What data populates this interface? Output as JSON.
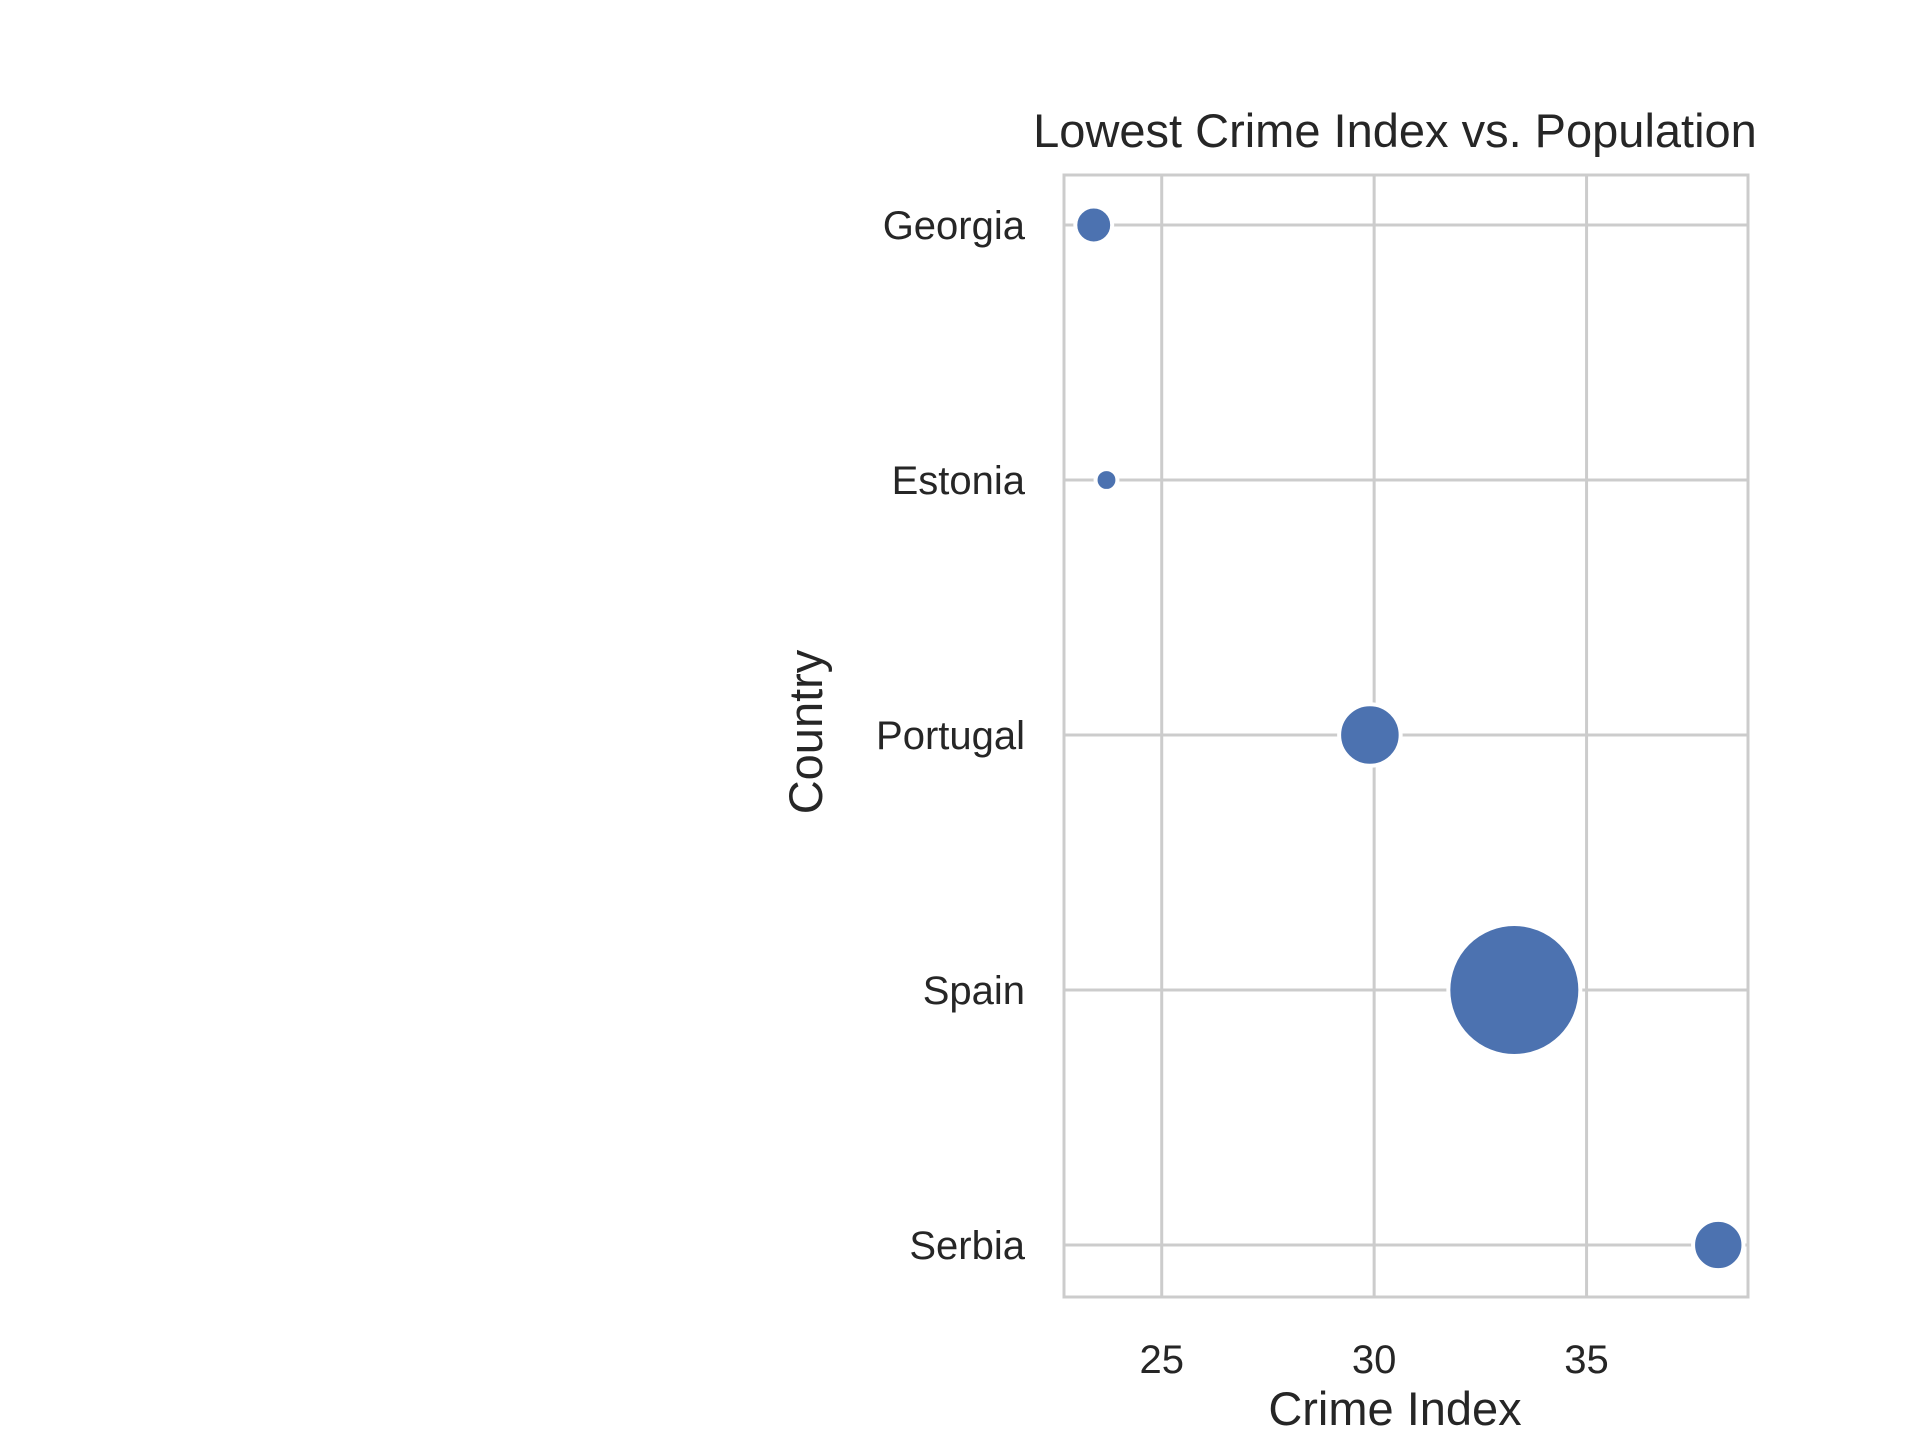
{
  "chart_data": {
    "type": "scatter",
    "title": "Lowest Crime Index vs. Population",
    "xlabel": "Crime Index",
    "ylabel": "Country",
    "xlim": [
      22.7,
      38.8
    ],
    "xticks": [
      25,
      30,
      35
    ],
    "categories": [
      "Georgia",
      "Estonia",
      "Portugal",
      "Spain",
      "Serbia"
    ],
    "points": [
      {
        "category": "Georgia",
        "x": 23.4,
        "population_m": 3.7
      },
      {
        "category": "Estonia",
        "x": 23.7,
        "population_m": 1.3
      },
      {
        "category": "Portugal",
        "x": 29.9,
        "population_m": 10.3
      },
      {
        "category": "Spain",
        "x": 33.3,
        "population_m": 47.4
      },
      {
        "category": "Serbia",
        "x": 38.1,
        "population_m": 6.9
      }
    ],
    "grid": true,
    "colors": {
      "marker": "#4c72b0",
      "grid": "#cccccc",
      "frame": "#cccccc"
    }
  }
}
